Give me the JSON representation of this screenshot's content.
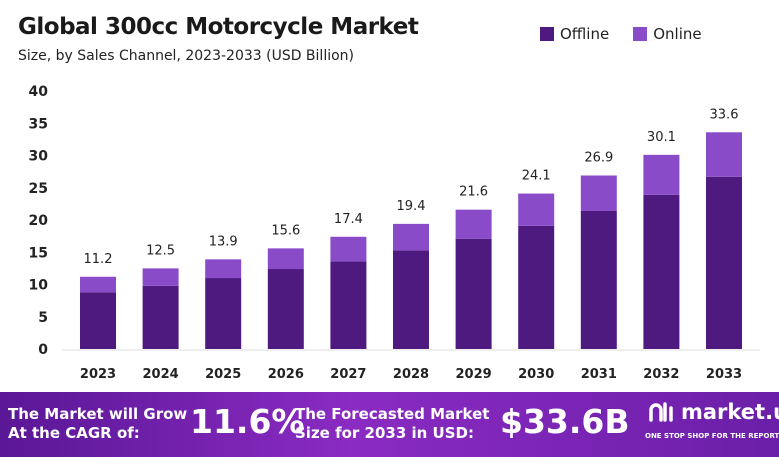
{
  "header": {
    "title": "Global 300cc Motorcycle Market",
    "subtitle": "Size, by Sales Channel, 2023-2033 (USD Billion)"
  },
  "colors": {
    "offline": "#4e1a80",
    "online": "#8a4bc9",
    "banner": "#7a25b5"
  },
  "chart_data": {
    "type": "bar",
    "stacked": true,
    "title": "Global 300cc Motorcycle Market",
    "subtitle": "Size, by Sales Channel, 2023-2033 (USD Billion)",
    "xlabel": "",
    "ylabel": "",
    "ylim": [
      0,
      40
    ],
    "yticks": [
      "0",
      "5",
      "10",
      "15",
      "20",
      "25",
      "30",
      "35",
      "40"
    ],
    "categories": [
      "2023",
      "2024",
      "2025",
      "2026",
      "2027",
      "2028",
      "2029",
      "2030",
      "2031",
      "2032",
      "2033"
    ],
    "series": [
      {
        "name": "Offline",
        "values": [
          8.8,
          9.8,
          11.0,
          12.4,
          13.6,
          15.3,
          17.1,
          19.1,
          21.4,
          23.9,
          26.7
        ]
      },
      {
        "name": "Online",
        "values": [
          2.4,
          2.7,
          2.9,
          3.2,
          3.8,
          4.1,
          4.5,
          5.0,
          5.5,
          6.2,
          6.9
        ]
      }
    ],
    "totals": [
      "11.2",
      "12.5",
      "13.9",
      "15.6",
      "17.4",
      "19.4",
      "21.6",
      "24.1",
      "26.9",
      "30.1",
      "33.6"
    ],
    "legend_position": "top-right",
    "grid": false
  },
  "banner": {
    "cagr_text_1": "The Market will Grow",
    "cagr_text_2": "At the CAGR of:",
    "cagr_value": "11.6%",
    "forecast_text_1": "The Forecasted Market",
    "forecast_text_2": "Size for 2033 in USD:",
    "forecast_value": "$33.6B",
    "logo_name": "market.us",
    "logo_tagline": "ONE STOP SHOP FOR THE REPORTS"
  }
}
